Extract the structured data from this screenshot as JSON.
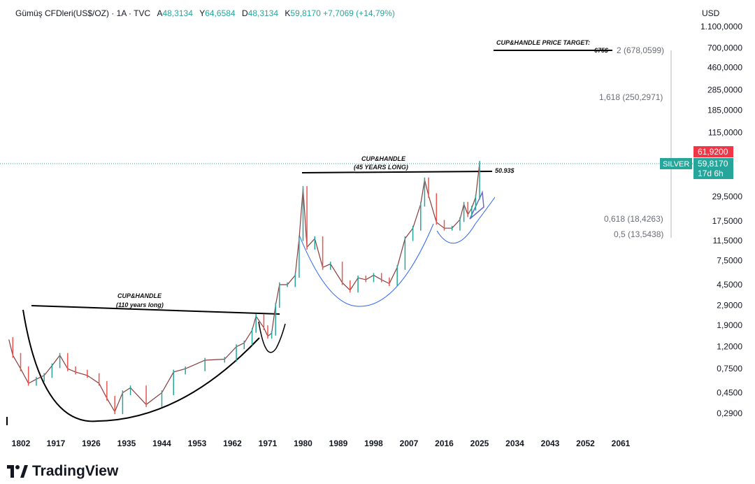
{
  "header": {
    "symbol": "Gümüş CFDleri(US$/OZ) · 1A · TVC",
    "open_label": "A",
    "open": "48,3134",
    "high_label": "Y",
    "high": "64,6584",
    "low_label": "D",
    "low": "48,3134",
    "close_label": "K",
    "close": "59,8170",
    "change": "+7,7069 (+14,79%)"
  },
  "currency": "USD",
  "brand": "TradingView",
  "colors": {
    "up": "#26a69a",
    "down": "#ef5350",
    "curve": "#2962ff",
    "accent_red": "#f23645",
    "accent_green": "#26a69a"
  },
  "chart_data": {
    "type": "line",
    "title": "Gümüş CFDleri(US$/OZ) · 1A · TVC",
    "ylabel": "USD",
    "y_scale": "log",
    "y_ticks": [
      "1.100,0000",
      "700,0000",
      "460,0000",
      "285,0000",
      "185,0000",
      "115,0000",
      "29,5000",
      "17,5000",
      "11,5000",
      "7,5000",
      "4,5000",
      "2,9000",
      "1,9000",
      "1,2000",
      "0,7500",
      "0,4500",
      "0,2900"
    ],
    "y_tick_values": [
      1100,
      700,
      460,
      285,
      185,
      115,
      29.5,
      17.5,
      11.5,
      7.5,
      4.5,
      2.9,
      1.9,
      1.2,
      0.75,
      0.45,
      0.29
    ],
    "x_ticks": [
      "1802",
      "1917",
      "1926",
      "1935",
      "1944",
      "1953",
      "1962",
      "1971",
      "1980",
      "1989",
      "1998",
      "2007",
      "2016",
      "2025",
      "2034",
      "2043",
      "2052",
      "2061"
    ],
    "series": [
      {
        "name": "Silver (yearly)",
        "x": [
          1905,
          1906,
          1908,
          1910,
          1912,
          1914,
          1916,
          1918,
          1920,
          1922,
          1925,
          1928,
          1930,
          1932,
          1934,
          1936,
          1940,
          1944,
          1947,
          1950,
          1955,
          1960,
          1963,
          1965,
          1967,
          1968,
          1970,
          1971,
          1972,
          1973,
          1974,
          1976,
          1978,
          1979,
          1980,
          1981,
          1983,
          1985,
          1987,
          1990,
          1992,
          1994,
          1996,
          1998,
          2000,
          2002,
          2004,
          2006,
          2008,
          2010,
          2011,
          2012,
          2014,
          2016,
          2018,
          2020,
          2021,
          2022,
          2023,
          2024,
          2025
        ],
        "values": [
          1.4,
          1.0,
          0.75,
          0.55,
          0.6,
          0.65,
          0.8,
          1.0,
          0.75,
          0.7,
          0.65,
          0.55,
          0.4,
          0.3,
          0.45,
          0.5,
          0.35,
          0.45,
          0.7,
          0.75,
          0.9,
          0.92,
          1.2,
          1.3,
          1.7,
          2.3,
          1.8,
          1.5,
          1.6,
          2.9,
          4.5,
          4.5,
          5.5,
          12,
          35,
          10,
          12,
          6.5,
          7,
          4.7,
          4,
          5.2,
          5,
          5.5,
          5,
          4.6,
          6.5,
          12,
          15,
          25,
          42,
          30,
          17,
          15,
          15,
          18,
          25,
          20,
          23,
          29,
          59.8
        ]
      }
    ],
    "annotations": [
      {
        "text": "CUP&HANDLE",
        "sub": "(110 years long)"
      },
      {
        "text": "CUP&HANDLE",
        "sub": "(45 YEARS LONG)"
      },
      {
        "text": "50.93$"
      },
      {
        "text": "CUP&HANDLE PRICE TARGET:"
      },
      {
        "text": "675$"
      }
    ],
    "fib_levels": [
      {
        "ratio": "2",
        "price": "678,0599",
        "label": "2 (678,0599)"
      },
      {
        "ratio": "1,618",
        "price": "250,2971",
        "label": "1,618 (250,2971)"
      },
      {
        "ratio": "0,618",
        "price": "18,4263",
        "label": "0,618 (18,4263)"
      },
      {
        "ratio": "0,5",
        "price": "13,5438",
        "label": "0,5 (13,5438)"
      }
    ],
    "price_tags": {
      "high": "61,9200",
      "last": "59,8170",
      "countdown": "17d 6h",
      "symbol_tag": "SILVER"
    }
  }
}
